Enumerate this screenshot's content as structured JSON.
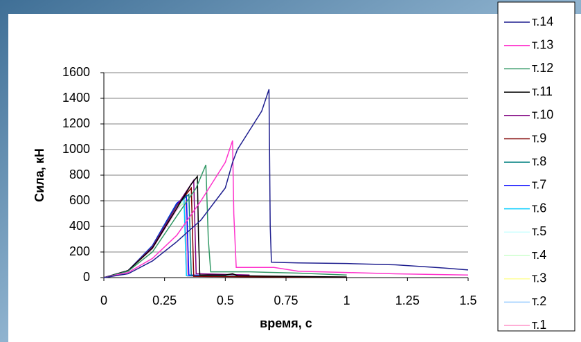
{
  "chart_data": {
    "type": "line",
    "xlabel": "время, с",
    "ylabel": "Сила, кН",
    "xlim": [
      0,
      1.5
    ],
    "xticks": [
      0,
      0.25,
      0.5,
      0.75,
      1,
      1.25,
      1.5
    ],
    "ylim": [
      0,
      1600
    ],
    "yticks": [
      0,
      200,
      400,
      600,
      800,
      1000,
      1200,
      1400,
      1600
    ],
    "grid": true,
    "legend": "right",
    "series": [
      {
        "name": "т.14",
        "color": "#1f1f8f",
        "x": [
          0,
          0.1,
          0.2,
          0.3,
          0.4,
          0.5,
          0.53,
          0.55,
          0.6,
          0.65,
          0.68,
          0.685,
          0.69,
          0.8,
          1.0,
          1.2,
          1.4,
          1.5
        ],
        "values": [
          0,
          30,
          130,
          280,
          450,
          700,
          900,
          1000,
          1150,
          1300,
          1470,
          400,
          120,
          115,
          110,
          100,
          75,
          60
        ]
      },
      {
        "name": "т.13",
        "color": "#ff33cc",
        "x": [
          0,
          0.1,
          0.2,
          0.3,
          0.4,
          0.45,
          0.5,
          0.53,
          0.535,
          0.545,
          0.7,
          0.8,
          1.0,
          1.2,
          1.5
        ],
        "values": [
          0,
          40,
          150,
          330,
          600,
          750,
          900,
          1070,
          500,
          80,
          80,
          50,
          40,
          30,
          20
        ]
      },
      {
        "name": "т.12",
        "color": "#339966",
        "x": [
          0,
          0.1,
          0.2,
          0.3,
          0.38,
          0.42,
          0.43,
          0.44,
          0.6,
          0.8,
          1.0
        ],
        "values": [
          0,
          50,
          200,
          480,
          700,
          880,
          300,
          45,
          45,
          35,
          20
        ]
      },
      {
        "name": "т.11",
        "color": "#000000",
        "x": [
          0,
          0.1,
          0.2,
          0.3,
          0.36,
          0.385,
          0.39,
          0.395,
          0.5,
          0.53,
          0.55,
          0.75,
          1.0
        ],
        "values": [
          0,
          55,
          230,
          540,
          730,
          790,
          300,
          20,
          20,
          30,
          15,
          10,
          5
        ]
      },
      {
        "name": "т.10",
        "color": "#800080",
        "x": [
          0,
          0.1,
          0.2,
          0.3,
          0.37,
          0.38,
          0.4,
          0.6
        ],
        "values": [
          0,
          55,
          240,
          560,
          760,
          30,
          30,
          20
        ]
      },
      {
        "name": "т.9",
        "color": "#800000",
        "x": [
          0,
          0.1,
          0.2,
          0.3,
          0.36,
          0.37,
          0.5,
          1.0
        ],
        "values": [
          0,
          55,
          240,
          560,
          700,
          10,
          8,
          5
        ]
      },
      {
        "name": "т.8",
        "color": "#008080",
        "x": [
          0,
          0.1,
          0.2,
          0.3,
          0.35,
          0.36,
          0.5,
          0.7
        ],
        "values": [
          0,
          55,
          245,
          570,
          650,
          15,
          12,
          8
        ]
      },
      {
        "name": "т.7",
        "color": "#0000ff",
        "x": [
          0,
          0.1,
          0.2,
          0.3,
          0.34,
          0.345,
          0.35,
          0.5
        ],
        "values": [
          0,
          55,
          250,
          580,
          640,
          300,
          20,
          15
        ]
      },
      {
        "name": "т.6",
        "color": "#00ccff",
        "x": [
          0,
          0.1,
          0.2,
          0.3,
          0.33,
          0.34,
          0.45
        ],
        "values": [
          0,
          55,
          250,
          580,
          620,
          15,
          12
        ]
      },
      {
        "name": "т.5",
        "color": "#ccffff",
        "x": [
          0,
          0.1,
          0.2,
          0.3,
          0.33,
          0.34,
          0.45
        ],
        "values": [
          0,
          50,
          240,
          560,
          600,
          15,
          10
        ]
      },
      {
        "name": "т.4",
        "color": "#ccffcc",
        "x": [
          0,
          0.1,
          0.2,
          0.3,
          0.33,
          0.34,
          0.45
        ],
        "values": [
          0,
          50,
          235,
          550,
          590,
          15,
          10
        ]
      },
      {
        "name": "т.3",
        "color": "#ffff99",
        "x": [
          0,
          0.1,
          0.2,
          0.3,
          0.33,
          0.34,
          0.45
        ],
        "values": [
          0,
          50,
          230,
          545,
          585,
          15,
          10
        ]
      },
      {
        "name": "т.2",
        "color": "#99ccff",
        "x": [
          0,
          0.1,
          0.2,
          0.3,
          0.33,
          0.34,
          0.45
        ],
        "values": [
          0,
          50,
          230,
          540,
          580,
          15,
          10
        ]
      },
      {
        "name": "т.1",
        "color": "#ff99cc",
        "x": [
          0,
          0.1,
          0.2,
          0.3,
          0.335,
          0.34,
          0.345,
          0.45
        ],
        "values": [
          0,
          50,
          225,
          530,
          600,
          300,
          10,
          8
        ]
      }
    ]
  }
}
